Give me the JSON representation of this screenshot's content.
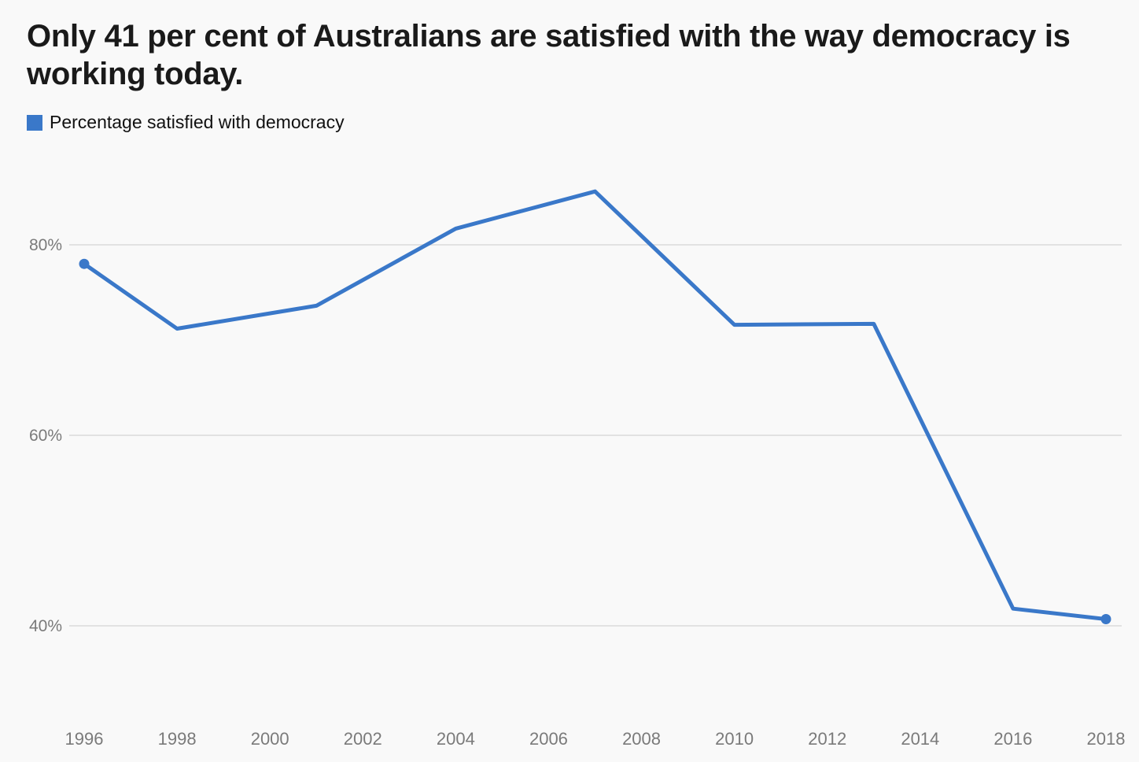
{
  "chart_data": {
    "type": "line",
    "title": "Only 41 per cent of Australians are satisfied with the way democracy is working today.",
    "xlabel": "",
    "ylabel": "",
    "legend_position": "top-left",
    "grid": true,
    "x": [
      1996,
      1998,
      2001,
      2004,
      2007,
      2010,
      2013,
      2016,
      2018
    ],
    "series": [
      {
        "name": "Percentage satisfied with democracy",
        "color": "#3a78c9",
        "values": [
          78.0,
          71.2,
          73.6,
          81.7,
          85.6,
          71.6,
          71.7,
          41.8,
          40.7
        ],
        "endpoint_markers": true
      }
    ],
    "xlim": [
      1996,
      2018
    ],
    "ylim": [
      32,
      89
    ],
    "x_ticks": [
      "1996",
      "1998",
      "2000",
      "2002",
      "2004",
      "2006",
      "2008",
      "2010",
      "2012",
      "2014",
      "2016",
      "2018"
    ],
    "x_tick_values": [
      1996,
      1998,
      2000,
      2002,
      2004,
      2006,
      2008,
      2010,
      2012,
      2014,
      2016,
      2018
    ],
    "y_ticks": [
      "40%",
      "60%",
      "80%"
    ],
    "y_tick_values": [
      40,
      60,
      80
    ]
  }
}
